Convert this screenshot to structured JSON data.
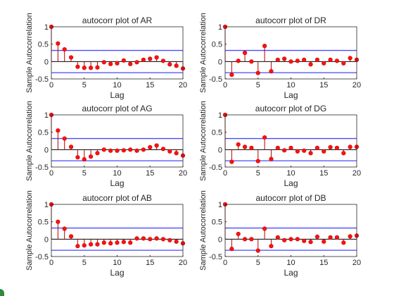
{
  "figure": {
    "corner_mark_color": "#2d8a3e"
  },
  "colors": {
    "stem": "#b00000",
    "marker": "#ff1010",
    "bound": "#4a4aff",
    "axis": "#262626"
  },
  "chart_data": [
    {
      "type": "stem",
      "title": "autocorr plot of AR",
      "xlabel": "Lag",
      "ylabel": "Sample Autocorrelation",
      "xlim": [
        0,
        20
      ],
      "ylim": [
        -0.5,
        1
      ],
      "xticks": [
        0,
        5,
        10,
        15,
        20
      ],
      "yticks": [
        -0.5,
        0,
        0.5,
        1
      ],
      "ytick_labels": [
        "-0.5",
        "0",
        "0.5",
        "1"
      ],
      "bounds": [
        0.32,
        -0.32
      ],
      "x": [
        0,
        1,
        2,
        3,
        4,
        5,
        6,
        7,
        8,
        9,
        10,
        11,
        12,
        13,
        14,
        15,
        16,
        17,
        18,
        19,
        20
      ],
      "values": [
        1,
        0.52,
        0.35,
        0.12,
        -0.15,
        -0.18,
        -0.18,
        -0.17,
        -0.02,
        -0.07,
        -0.05,
        0.03,
        -0.07,
        -0.02,
        0.05,
        0.08,
        0.12,
        0.02,
        -0.08,
        -0.12,
        -0.2
      ]
    },
    {
      "type": "stem",
      "title": "autocorr plot of DR",
      "xlabel": "Lag",
      "ylabel": "Sample Autocorrelation",
      "xlim": [
        0,
        20
      ],
      "ylim": [
        -0.5,
        1
      ],
      "xticks": [
        0,
        5,
        10,
        15,
        20
      ],
      "yticks": [
        -0.5,
        0,
        0.5,
        1
      ],
      "ytick_labels": [
        "-0.5",
        "0",
        "0.5",
        "1"
      ],
      "bounds": [
        0.32,
        -0.32
      ],
      "x": [
        0,
        1,
        2,
        3,
        4,
        5,
        6,
        7,
        8,
        9,
        10,
        11,
        12,
        13,
        14,
        15,
        16,
        17,
        18,
        19,
        20
      ],
      "values": [
        1,
        -0.38,
        0.02,
        0.25,
        0.0,
        -0.33,
        0.45,
        -0.28,
        0.05,
        0.08,
        0.0,
        0.02,
        0.05,
        -0.08,
        0.05,
        -0.05,
        0.05,
        0.02,
        -0.05,
        0.1,
        0.05
      ]
    },
    {
      "type": "stem",
      "title": "autocorr plot of AG",
      "xlabel": "Lag",
      "ylabel": "Sample Autocorrelation",
      "xlim": [
        0,
        20
      ],
      "ylim": [
        -0.5,
        1
      ],
      "xticks": [
        0,
        5,
        10,
        15,
        20
      ],
      "yticks": [
        -0.5,
        0,
        0.5,
        1
      ],
      "ytick_labels": [
        "-0.5",
        "0",
        "0.5",
        "1"
      ],
      "bounds": [
        0.32,
        -0.32
      ],
      "x": [
        0,
        1,
        2,
        3,
        4,
        5,
        6,
        7,
        8,
        9,
        10,
        11,
        12,
        13,
        14,
        15,
        16,
        17,
        18,
        19,
        20
      ],
      "values": [
        1,
        0.55,
        0.32,
        0.08,
        -0.22,
        -0.28,
        -0.2,
        -0.1,
        0.0,
        -0.03,
        -0.03,
        -0.02,
        0.0,
        -0.03,
        0.0,
        0.07,
        0.12,
        0.02,
        -0.05,
        -0.1,
        -0.17
      ]
    },
    {
      "type": "stem",
      "title": "autocorr plot of DG",
      "xlabel": "Lag",
      "ylabel": "Sample Autocorrelation",
      "xlim": [
        0,
        20
      ],
      "ylim": [
        -0.5,
        1
      ],
      "xticks": [
        0,
        5,
        10,
        15,
        20
      ],
      "yticks": [
        -0.5,
        0,
        0.5,
        1
      ],
      "ytick_labels": [
        "-0.5",
        "0",
        "0.5",
        "1"
      ],
      "bounds": [
        0.32,
        -0.32
      ],
      "x": [
        0,
        1,
        2,
        3,
        4,
        5,
        6,
        7,
        8,
        9,
        10,
        11,
        12,
        13,
        14,
        15,
        16,
        17,
        18,
        19,
        20
      ],
      "values": [
        1,
        -0.35,
        0.15,
        0.08,
        0.05,
        -0.33,
        0.35,
        -0.27,
        0.05,
        -0.02,
        0.05,
        -0.05,
        -0.03,
        -0.1,
        0.05,
        -0.05,
        0.07,
        0.05,
        -0.1,
        0.08,
        0.08
      ]
    },
    {
      "type": "stem",
      "title": "autocorr plot of AB",
      "xlabel": "Lag",
      "ylabel": "Sample Autocorrelation",
      "xlim": [
        0,
        20
      ],
      "ylim": [
        -0.5,
        1
      ],
      "xticks": [
        0,
        5,
        10,
        15,
        20
      ],
      "yticks": [
        -0.5,
        0,
        0.5,
        1
      ],
      "ytick_labels": [
        "-0.5",
        "0",
        "0.5",
        "1"
      ],
      "bounds": [
        0.32,
        -0.32
      ],
      "x": [
        0,
        1,
        2,
        3,
        4,
        5,
        6,
        7,
        8,
        9,
        10,
        11,
        12,
        13,
        14,
        15,
        16,
        17,
        18,
        19,
        20
      ],
      "values": [
        1,
        0.5,
        0.3,
        0.08,
        -0.2,
        -0.18,
        -0.15,
        -0.15,
        -0.1,
        -0.12,
        -0.1,
        -0.08,
        -0.1,
        0.02,
        0.02,
        0.0,
        0.02,
        0.0,
        -0.03,
        -0.07,
        -0.12
      ]
    },
    {
      "type": "stem",
      "title": "autocorr plot of DB",
      "xlabel": "Lag",
      "ylabel": "Sample Autocorrelation",
      "xlim": [
        0,
        20
      ],
      "ylim": [
        -0.5,
        1
      ],
      "xticks": [
        0,
        5,
        10,
        15,
        20
      ],
      "yticks": [
        -0.5,
        0,
        0.5,
        1
      ],
      "ytick_labels": [
        "-0.5",
        "0",
        "0.5",
        "1"
      ],
      "bounds": [
        0.32,
        -0.32
      ],
      "x": [
        0,
        1,
        2,
        3,
        4,
        5,
        6,
        7,
        8,
        9,
        10,
        11,
        12,
        13,
        14,
        15,
        16,
        17,
        18,
        19,
        20
      ],
      "values": [
        1,
        -0.28,
        0.15,
        0.0,
        0.0,
        -0.33,
        0.3,
        -0.2,
        0.05,
        -0.03,
        0.0,
        0.0,
        -0.05,
        -0.08,
        0.07,
        -0.07,
        0.05,
        0.05,
        -0.1,
        0.08,
        0.1
      ]
    }
  ]
}
